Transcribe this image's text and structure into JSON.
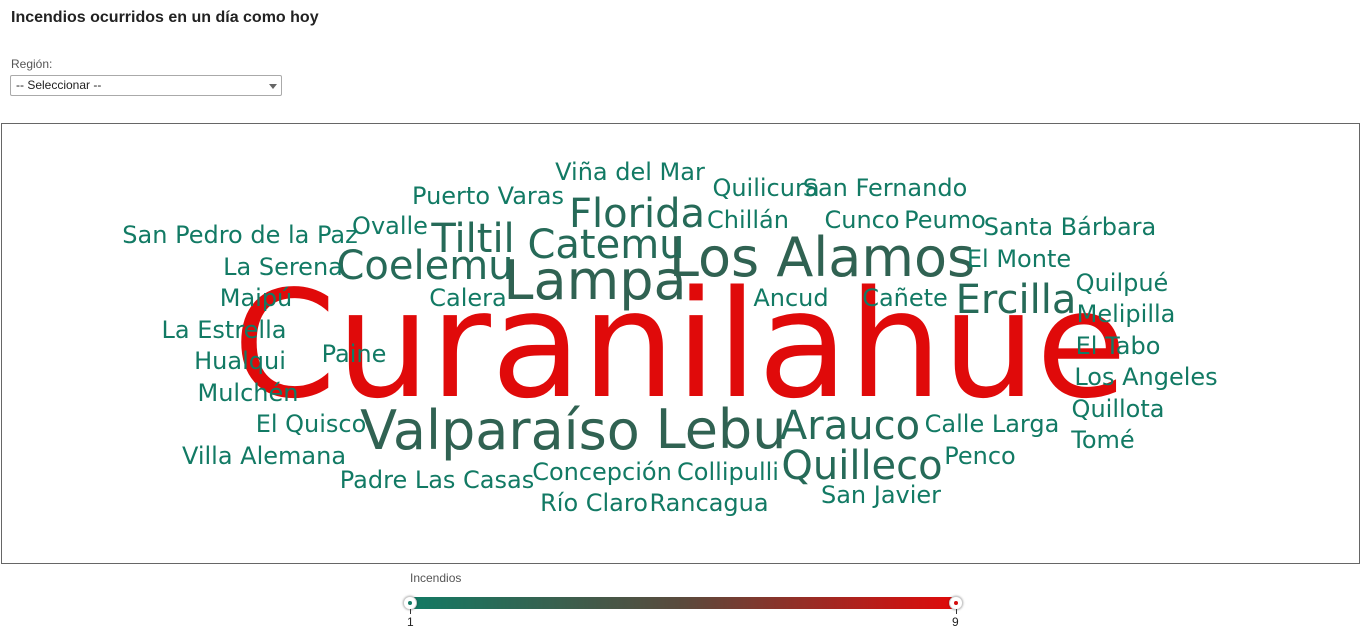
{
  "page": {
    "title": "Incendios ocurridos en un día como hoy"
  },
  "filter": {
    "label": "Región:",
    "selected": "-- Seleccionar --"
  },
  "colors": {
    "low": "#127a64",
    "mid": "#3a5a4c",
    "high": "#e00a0a"
  },
  "legend": {
    "title": "Incendios",
    "min_label": "1",
    "max_label": "9"
  },
  "chart_data": {
    "type": "wordcloud",
    "value_min": 1,
    "value_max": 9,
    "words": [
      {
        "text": "Curanilahue",
        "value": 9
      },
      {
        "text": "Los Alamos",
        "value": 4
      },
      {
        "text": "Lampa",
        "value": 4
      },
      {
        "text": "Valparaíso",
        "value": 4
      },
      {
        "text": "Lebu",
        "value": 4
      },
      {
        "text": "Coelemu",
        "value": 3
      },
      {
        "text": "Catemu",
        "value": 3
      },
      {
        "text": "Florida",
        "value": 3
      },
      {
        "text": "Tiltil",
        "value": 3
      },
      {
        "text": "Ercilla",
        "value": 3
      },
      {
        "text": "Arauco",
        "value": 3
      },
      {
        "text": "Quilleco",
        "value": 3
      },
      {
        "text": "Viña del Mar",
        "value": 1
      },
      {
        "text": "Puerto Varas",
        "value": 1
      },
      {
        "text": "Quilicura",
        "value": 1
      },
      {
        "text": "San Fernando",
        "value": 1
      },
      {
        "text": "Chillán",
        "value": 1
      },
      {
        "text": "Cunco",
        "value": 1
      },
      {
        "text": "Peumo",
        "value": 1
      },
      {
        "text": "Santa Bárbara",
        "value": 1
      },
      {
        "text": "San Pedro de la Paz",
        "value": 1
      },
      {
        "text": "Ovalle",
        "value": 1
      },
      {
        "text": "La Serena",
        "value": 1
      },
      {
        "text": "El Monte",
        "value": 1
      },
      {
        "text": "Maipú",
        "value": 1
      },
      {
        "text": "Calera",
        "value": 1
      },
      {
        "text": "Ancud",
        "value": 1
      },
      {
        "text": "Cañete",
        "value": 1
      },
      {
        "text": "Quilpué",
        "value": 1
      },
      {
        "text": "Melipilla",
        "value": 1
      },
      {
        "text": "La Estrella",
        "value": 1
      },
      {
        "text": "Paine",
        "value": 1
      },
      {
        "text": "Hualqui",
        "value": 1
      },
      {
        "text": "El Tabo",
        "value": 1
      },
      {
        "text": "Los Angeles",
        "value": 1
      },
      {
        "text": "Mulchén",
        "value": 1
      },
      {
        "text": "Quillota",
        "value": 1
      },
      {
        "text": "El Quisco",
        "value": 1
      },
      {
        "text": "Calle Larga",
        "value": 1
      },
      {
        "text": "Villa Alemana",
        "value": 1
      },
      {
        "text": "Tomé",
        "value": 1
      },
      {
        "text": "Penco",
        "value": 1
      },
      {
        "text": "Padre Las Casas",
        "value": 1
      },
      {
        "text": "Concepción",
        "value": 1
      },
      {
        "text": "Collipulli",
        "value": 1
      },
      {
        "text": "San Javier",
        "value": 1
      },
      {
        "text": "Río Claro",
        "value": 1
      },
      {
        "text": "Rancagua",
        "value": 1
      }
    ]
  }
}
